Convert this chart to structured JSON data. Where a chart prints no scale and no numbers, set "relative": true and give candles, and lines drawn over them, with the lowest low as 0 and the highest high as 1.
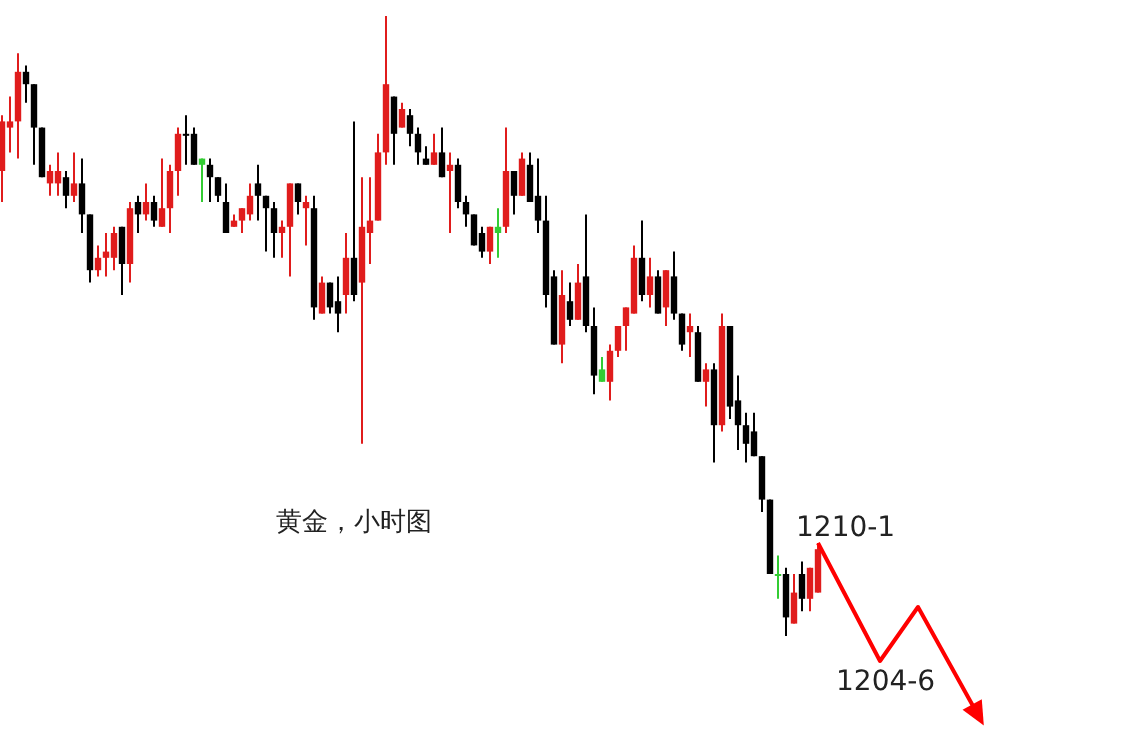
{
  "chart_data": {
    "type": "candlestick",
    "relative": true,
    "categories": [
      null,
      null,
      null,
      null,
      null,
      null,
      null,
      null,
      null,
      null,
      null,
      null,
      null,
      null,
      null,
      null,
      null,
      null,
      null,
      null,
      null,
      null,
      null,
      null,
      null,
      null,
      null,
      null,
      null,
      null,
      null,
      null,
      null,
      null,
      null,
      null,
      null,
      null,
      null,
      null,
      null,
      null,
      null,
      null,
      null,
      null,
      null,
      null,
      null,
      null,
      null,
      null,
      null,
      null,
      null,
      null,
      null,
      null,
      null,
      null,
      null,
      null,
      null,
      null,
      null,
      null,
      null,
      null,
      null,
      null,
      null,
      null,
      null,
      null,
      null,
      null,
      null,
      null,
      null,
      null,
      null,
      null,
      null,
      null,
      null,
      null,
      null,
      null,
      null,
      null,
      null,
      null,
      null,
      null,
      null,
      null,
      null,
      null,
      null,
      null,
      null,
      null,
      null,
      null,
      null,
      null,
      null,
      null,
      null,
      null,
      null,
      null,
      null,
      null,
      null,
      null,
      null,
      null,
      null,
      null,
      null,
      null,
      null,
      null
    ],
    "ohlc": [
      [
        0.75,
        0.84,
        0.7,
        0.83
      ],
      [
        0.82,
        0.87,
        0.78,
        0.83
      ],
      [
        0.83,
        0.94,
        0.77,
        0.91
      ],
      [
        0.91,
        0.92,
        0.86,
        0.89
      ],
      [
        0.89,
        0.89,
        0.76,
        0.82
      ],
      [
        0.82,
        0.82,
        0.74,
        0.74
      ],
      [
        0.73,
        0.76,
        0.71,
        0.75
      ],
      [
        0.73,
        0.78,
        0.71,
        0.75
      ],
      [
        0.74,
        0.75,
        0.69,
        0.71
      ],
      [
        0.71,
        0.78,
        0.7,
        0.73
      ],
      [
        0.73,
        0.77,
        0.65,
        0.68
      ],
      [
        0.68,
        0.68,
        0.57,
        0.59
      ],
      [
        0.59,
        0.63,
        0.58,
        0.61
      ],
      [
        0.61,
        0.65,
        0.58,
        0.62
      ],
      [
        0.61,
        0.66,
        0.59,
        0.65
      ],
      [
        0.66,
        0.66,
        0.55,
        0.6
      ],
      [
        0.6,
        0.7,
        0.57,
        0.69
      ],
      [
        0.7,
        0.71,
        0.65,
        0.68
      ],
      [
        0.68,
        0.73,
        0.67,
        0.7
      ],
      [
        0.7,
        0.71,
        0.66,
        0.67
      ],
      [
        0.66,
        0.77,
        0.66,
        0.69
      ],
      [
        0.69,
        0.76,
        0.65,
        0.75
      ],
      [
        0.75,
        0.82,
        0.71,
        0.81
      ],
      [
        0.81,
        0.84,
        0.76,
        0.81
      ],
      [
        0.81,
        0.82,
        0.76,
        0.76
      ],
      [
        0.76,
        0.77,
        0.7,
        0.77
      ],
      [
        0.76,
        0.77,
        0.7,
        0.74
      ],
      [
        0.74,
        0.74,
        0.7,
        0.71
      ],
      [
        0.7,
        0.73,
        0.65,
        0.65
      ],
      [
        0.66,
        0.68,
        0.66,
        0.67
      ],
      [
        0.67,
        0.69,
        0.65,
        0.69
      ],
      [
        0.68,
        0.73,
        0.67,
        0.71
      ],
      [
        0.73,
        0.76,
        0.67,
        0.71
      ],
      [
        0.71,
        0.71,
        0.62,
        0.69
      ],
      [
        0.69,
        0.7,
        0.61,
        0.65
      ],
      [
        0.65,
        0.67,
        0.61,
        0.66
      ],
      [
        0.66,
        0.73,
        0.58,
        0.73
      ],
      [
        0.73,
        0.73,
        0.68,
        0.7
      ],
      [
        0.69,
        0.71,
        0.63,
        0.7
      ],
      [
        0.69,
        0.71,
        0.51,
        0.53
      ],
      [
        0.52,
        0.58,
        0.52,
        0.57
      ],
      [
        0.57,
        0.57,
        0.52,
        0.53
      ],
      [
        0.54,
        0.58,
        0.49,
        0.52
      ],
      [
        0.55,
        0.65,
        0.52,
        0.61
      ],
      [
        0.61,
        0.83,
        0.54,
        0.55
      ],
      [
        0.57,
        0.74,
        0.31,
        0.66
      ],
      [
        0.65,
        0.74,
        0.6,
        0.67
      ],
      [
        0.67,
        0.81,
        0.67,
        0.78
      ],
      [
        0.78,
        1.0,
        0.76,
        0.89
      ],
      [
        0.87,
        0.87,
        0.76,
        0.81
      ],
      [
        0.82,
        0.86,
        0.82,
        0.85
      ],
      [
        0.84,
        0.85,
        0.79,
        0.81
      ],
      [
        0.81,
        0.82,
        0.76,
        0.78
      ],
      [
        0.77,
        0.79,
        0.76,
        0.76
      ],
      [
        0.76,
        0.81,
        0.76,
        0.78
      ],
      [
        0.78,
        0.82,
        0.74,
        0.74
      ],
      [
        0.75,
        0.78,
        0.65,
        0.76
      ],
      [
        0.76,
        0.77,
        0.69,
        0.7
      ],
      [
        0.7,
        0.71,
        0.66,
        0.68
      ],
      [
        0.68,
        0.68,
        0.63,
        0.63
      ],
      [
        0.65,
        0.66,
        0.61,
        0.62
      ],
      [
        0.62,
        0.66,
        0.6,
        0.66
      ],
      [
        0.65,
        0.69,
        0.61,
        0.66
      ],
      [
        0.66,
        0.82,
        0.65,
        0.75
      ],
      [
        0.75,
        0.75,
        0.68,
        0.71
      ],
      [
        0.71,
        0.78,
        0.71,
        0.77
      ],
      [
        0.76,
        0.78,
        0.7,
        0.7
      ],
      [
        0.71,
        0.77,
        0.65,
        0.67
      ],
      [
        0.67,
        0.71,
        0.53,
        0.55
      ],
      [
        0.58,
        0.59,
        0.47,
        0.47
      ],
      [
        0.47,
        0.59,
        0.44,
        0.55
      ],
      [
        0.54,
        0.57,
        0.5,
        0.51
      ],
      [
        0.51,
        0.6,
        0.51,
        0.57
      ],
      [
        0.58,
        0.68,
        0.49,
        0.5
      ],
      [
        0.5,
        0.53,
        0.39,
        0.42
      ],
      [
        0.41,
        0.45,
        0.41,
        0.43
      ],
      [
        0.41,
        0.47,
        0.38,
        0.46
      ],
      [
        0.46,
        0.5,
        0.45,
        0.5
      ],
      [
        0.5,
        0.53,
        0.46,
        0.53
      ],
      [
        0.52,
        0.63,
        0.52,
        0.61
      ],
      [
        0.61,
        0.67,
        0.54,
        0.55
      ],
      [
        0.55,
        0.61,
        0.53,
        0.58
      ],
      [
        0.58,
        0.59,
        0.52,
        0.52
      ],
      [
        0.53,
        0.59,
        0.5,
        0.59
      ],
      [
        0.58,
        0.62,
        0.51,
        0.52
      ],
      [
        0.52,
        0.52,
        0.46,
        0.47
      ],
      [
        0.49,
        0.52,
        0.45,
        0.5
      ],
      [
        0.49,
        0.5,
        0.41,
        0.41
      ],
      [
        0.41,
        0.44,
        0.37,
        0.43
      ],
      [
        0.43,
        0.44,
        0.28,
        0.34
      ],
      [
        0.34,
        0.52,
        0.33,
        0.5
      ],
      [
        0.5,
        0.5,
        0.35,
        0.37
      ],
      [
        0.38,
        0.42,
        0.3,
        0.34
      ],
      [
        0.34,
        0.36,
        0.28,
        0.31
      ],
      [
        0.33,
        0.36,
        0.29,
        0.29
      ],
      [
        0.29,
        0.29,
        0.2,
        0.22
      ],
      [
        0.22,
        0.22,
        0.1,
        0.1
      ],
      [
        0.1,
        0.13,
        0.06,
        0.1
      ],
      [
        0.1,
        0.11,
        0.0,
        0.03
      ],
      [
        0.02,
        0.1,
        0.02,
        0.07
      ],
      [
        0.1,
        0.12,
        0.04,
        0.06
      ],
      [
        0.06,
        0.11,
        0.04,
        0.11
      ],
      [
        0.07,
        0.15,
        0.07,
        0.14
      ],
      null,
      null,
      null,
      null,
      null,
      null,
      null,
      null,
      null,
      null,
      null,
      null,
      null,
      null,
      null,
      null,
      null,
      null,
      null,
      null,
      null
    ],
    "colors": [
      "#e01c1c",
      "#e01c1c",
      "#e01c1c",
      "#000000",
      "#000000",
      "#000000",
      "#e01c1c",
      "#e01c1c",
      "#000000",
      "#e01c1c",
      "#000000",
      "#000000",
      "#e01c1c",
      "#e01c1c",
      "#e01c1c",
      "#000000",
      "#e01c1c",
      "#000000",
      "#e01c1c",
      "#000000",
      "#e01c1c",
      "#e01c1c",
      "#e01c1c",
      "#000000",
      "#000000",
      "#33cc33",
      "#000000",
      "#000000",
      "#000000",
      "#e01c1c",
      "#e01c1c",
      "#e01c1c",
      "#000000",
      "#000000",
      "#000000",
      "#e01c1c",
      "#e01c1c",
      "#000000",
      "#e01c1c",
      "#000000",
      "#e01c1c",
      "#000000",
      "#000000",
      "#e01c1c",
      "#000000",
      "#e01c1c",
      "#e01c1c",
      "#e01c1c",
      "#e01c1c",
      "#000000",
      "#e01c1c",
      "#000000",
      "#000000",
      "#000000",
      "#e01c1c",
      "#000000",
      "#e01c1c",
      "#000000",
      "#000000",
      "#000000",
      "#000000",
      "#e01c1c",
      "#33cc33",
      "#e01c1c",
      "#000000",
      "#e01c1c",
      "#000000",
      "#000000",
      "#000000",
      "#000000",
      "#e01c1c",
      "#000000",
      "#e01c1c",
      "#000000",
      "#000000",
      "#33cc33",
      "#e01c1c",
      "#e01c1c",
      "#e01c1c",
      "#e01c1c",
      "#000000",
      "#e01c1c",
      "#000000",
      "#e01c1c",
      "#000000",
      "#000000",
      "#e01c1c",
      "#000000",
      "#e01c1c",
      "#000000",
      "#e01c1c",
      "#000000",
      "#000000",
      "#000000",
      "#000000",
      "#000000",
      "#000000",
      "#33cc33",
      "#000000",
      "#e01c1c",
      "#000000",
      "#e01c1c",
      "#e01c1c",
      null,
      null,
      null,
      null,
      null,
      null,
      null,
      null,
      null,
      null,
      null,
      null,
      null,
      null,
      null,
      null,
      null,
      null,
      null,
      null,
      null
    ],
    "annotations": [
      "黄金，小时图",
      "1210-1",
      "1204-6"
    ]
  }
}
